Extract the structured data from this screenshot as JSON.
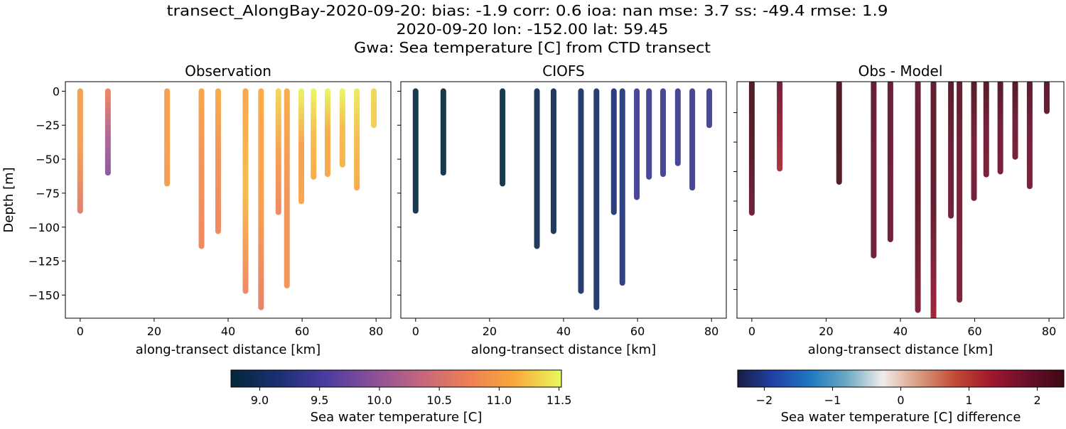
{
  "title_lines": [
    "transect_AlongBay-2020-09-20: bias: -1.9  corr: 0.6  ioa: nan  mse: 3.7  ss: -49.4  rmse: 1.9",
    "2020-09-20 lon: -152.00 lat: 59.45",
    "Gwa: Sea temperature [C] from CTD transect"
  ],
  "chart_data": [
    {
      "type": "scatter",
      "title": "Observation",
      "xlabel": "along-transect distance [km]",
      "ylabel": "Depth [m]",
      "xlim": [
        -4,
        84
      ],
      "ylim": [
        -167,
        7
      ],
      "xticks": [
        0,
        20,
        40,
        60,
        80
      ],
      "yticks": [
        0,
        -25,
        -50,
        -75,
        -100,
        -125,
        -150
      ],
      "ytick_labels": [
        "0",
        "−25",
        "−50",
        "−75",
        "−100",
        "−125",
        "−150"
      ],
      "colorbar": "temperature",
      "stations": [
        {
          "x": 0,
          "depth": -88,
          "values": [
            11.0,
            10.95,
            10.6
          ]
        },
        {
          "x": 7.5,
          "depth": -60,
          "values": [
            10.75,
            10.2,
            9.9
          ]
        },
        {
          "x": 23.5,
          "depth": -68,
          "values": [
            11.0,
            11.0,
            10.95
          ]
        },
        {
          "x": 32.8,
          "depth": -114,
          "values": [
            11.05,
            10.85,
            10.75
          ]
        },
        {
          "x": 37.3,
          "depth": -103,
          "values": [
            11.1,
            10.85,
            10.75
          ]
        },
        {
          "x": 44.7,
          "depth": -147,
          "values": [
            11.05,
            11.2,
            10.75
          ]
        },
        {
          "x": 48.9,
          "depth": -159,
          "values": [
            11.1,
            11.0,
            10.65
          ]
        },
        {
          "x": 53.6,
          "depth": -89,
          "values": [
            11.35,
            11.0,
            10.75
          ]
        },
        {
          "x": 55.9,
          "depth": -143,
          "values": [
            11.1,
            10.9,
            10.9
          ]
        },
        {
          "x": 59.8,
          "depth": -81,
          "values": [
            11.5,
            11.0,
            11.05
          ]
        },
        {
          "x": 63.1,
          "depth": -63,
          "values": [
            11.5,
            11.2,
            11.1
          ]
        },
        {
          "x": 66.9,
          "depth": -61,
          "values": [
            11.5,
            11.1,
            11.05
          ]
        },
        {
          "x": 70.9,
          "depth": -54,
          "values": [
            11.5,
            11.2,
            11.15
          ]
        },
        {
          "x": 74.8,
          "depth": -71,
          "values": [
            11.45,
            11.2,
            11.1
          ]
        },
        {
          "x": 79.4,
          "depth": -25,
          "values": [
            11.35,
            11.3,
            11.3
          ]
        }
      ]
    },
    {
      "type": "scatter",
      "title": "CIOFS",
      "xlabel": "along-transect distance [km]",
      "xlim": [
        -4,
        84
      ],
      "ylim": [
        -167,
        7
      ],
      "xticks": [
        0,
        20,
        40,
        60,
        80
      ],
      "yticks": [
        0,
        -25,
        -50,
        -75,
        -100,
        -125,
        -150
      ],
      "colorbar": "temperature",
      "stations": [
        {
          "x": 0,
          "depth": -88,
          "values": [
            8.8,
            8.8,
            8.8
          ]
        },
        {
          "x": 7.5,
          "depth": -60,
          "values": [
            8.8,
            8.8,
            8.8
          ]
        },
        {
          "x": 23.5,
          "depth": -68,
          "values": [
            8.8,
            8.8,
            8.8
          ]
        },
        {
          "x": 32.8,
          "depth": -114,
          "values": [
            8.9,
            8.9,
            8.9
          ]
        },
        {
          "x": 37.3,
          "depth": -103,
          "values": [
            8.9,
            8.9,
            8.9
          ]
        },
        {
          "x": 44.7,
          "depth": -147,
          "values": [
            9.05,
            9.05,
            9.05
          ]
        },
        {
          "x": 48.9,
          "depth": -159,
          "values": [
            9.05,
            9.05,
            9.05
          ]
        },
        {
          "x": 53.6,
          "depth": -89,
          "values": [
            9.15,
            9.15,
            9.15
          ]
        },
        {
          "x": 55.9,
          "depth": -141,
          "values": [
            9.2,
            9.2,
            9.2
          ]
        },
        {
          "x": 59.8,
          "depth": -78,
          "values": [
            9.4,
            9.4,
            9.4
          ]
        },
        {
          "x": 63.1,
          "depth": -63,
          "values": [
            9.4,
            9.4,
            9.4
          ]
        },
        {
          "x": 66.9,
          "depth": -61,
          "values": [
            9.4,
            9.4,
            9.4
          ]
        },
        {
          "x": 70.9,
          "depth": -53,
          "values": [
            9.4,
            9.4,
            9.4
          ]
        },
        {
          "x": 74.8,
          "depth": -71,
          "values": [
            9.4,
            9.4,
            9.4
          ]
        },
        {
          "x": 79.4,
          "depth": -25,
          "values": [
            9.4,
            9.4,
            9.4
          ]
        }
      ]
    },
    {
      "type": "scatter",
      "title": "Obs - Model",
      "xlabel": "along-transect distance [km]",
      "xlim": [
        -4,
        84
      ],
      "ylim": [
        -159.5,
        1
      ],
      "xticks": [
        0,
        20,
        40,
        60,
        80
      ],
      "yticks": [
        -20,
        -40,
        -60,
        -80,
        -100,
        -120,
        -140
      ],
      "colorbar": "difference",
      "stations": [
        {
          "x": 0,
          "depth": -88,
          "values": [
            2.3,
            2.2,
            1.9
          ]
        },
        {
          "x": 7.5,
          "depth": -58,
          "values": [
            1.9,
            1.5,
            1.2
          ]
        },
        {
          "x": 23.5,
          "depth": -67,
          "values": [
            2.3,
            2.3,
            2.25
          ]
        },
        {
          "x": 32.8,
          "depth": -117,
          "values": [
            2.1,
            1.85,
            1.85
          ]
        },
        {
          "x": 37.3,
          "depth": -106,
          "values": [
            2.0,
            1.95,
            1.9
          ]
        },
        {
          "x": 44.7,
          "depth": -154,
          "values": [
            2.0,
            2.1,
            1.75
          ]
        },
        {
          "x": 48.9,
          "depth": -160,
          "values": [
            2.1,
            2.1,
            1.4
          ]
        },
        {
          "x": 53.6,
          "depth": -90,
          "values": [
            2.2,
            1.95,
            1.9
          ]
        },
        {
          "x": 55.9,
          "depth": -147,
          "values": [
            2.1,
            1.8,
            1.75
          ]
        },
        {
          "x": 59.8,
          "depth": -78,
          "values": [
            2.3,
            1.8,
            1.85
          ]
        },
        {
          "x": 63.1,
          "depth": -62,
          "values": [
            2.3,
            1.85,
            1.8
          ]
        },
        {
          "x": 66.9,
          "depth": -60,
          "values": [
            2.3,
            1.9,
            1.85
          ]
        },
        {
          "x": 70.9,
          "depth": -50,
          "values": [
            2.35,
            1.9,
            1.8
          ]
        },
        {
          "x": 74.8,
          "depth": -70,
          "values": [
            2.2,
            1.85,
            1.8
          ]
        },
        {
          "x": 79.4,
          "depth": -19,
          "values": [
            2.2,
            2.1,
            2.1
          ]
        }
      ]
    }
  ],
  "colorbars": {
    "temperature": {
      "label": "Sea water temperature [C]",
      "range": [
        8.76,
        11.52
      ],
      "ticks": [
        "9.0",
        "9.5",
        "10.0",
        "10.5",
        "11.0",
        "11.5"
      ],
      "colormap": [
        "#03273a",
        "#1b2f72",
        "#4a3ca0",
        "#8a4f98",
        "#c2667f",
        "#ee7d57",
        "#f9a83a",
        "#e8fa5b"
      ]
    },
    "difference": {
      "label": "Sea water temperature [C] difference",
      "range": [
        -2.39,
        2.39
      ],
      "ticks": [
        "−2",
        "−1",
        "0",
        "1",
        "2"
      ],
      "tick_values": [
        -2,
        -1,
        0,
        1,
        2
      ],
      "colormap": [
        "#181c43",
        "#2042a8",
        "#1f78c0",
        "#6aa9c4",
        "#f1eceb",
        "#d99b80",
        "#c24a34",
        "#a0172e",
        "#6a0f2a",
        "#3c0912"
      ]
    }
  }
}
